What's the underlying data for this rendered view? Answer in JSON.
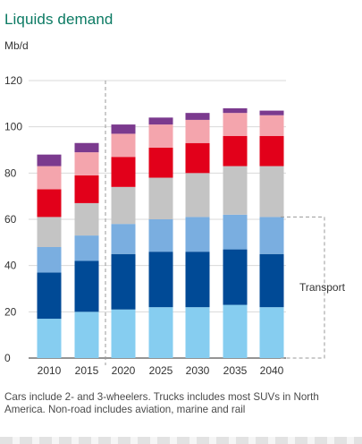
{
  "title": "Liquids demand",
  "unit": "Mb/d",
  "footnote": "Cars include 2- and 3-wheelers. Trucks includes most SUVs in North America. Non-road includes aviation, marine and rail",
  "chart_data": {
    "type": "bar",
    "stacked": true,
    "categories": [
      "2010",
      "2015",
      "2020",
      "2025",
      "2030",
      "2035",
      "2040"
    ],
    "ylim": [
      0,
      120
    ],
    "yticks": [
      0,
      20,
      40,
      60,
      80,
      100,
      120
    ],
    "grid": true,
    "series": [
      {
        "color": "#86cdf0",
        "values": [
          17,
          20,
          21,
          22,
          22,
          23,
          22
        ]
      },
      {
        "color": "#004a96",
        "values": [
          20,
          22,
          24,
          24,
          24,
          24,
          23
        ]
      },
      {
        "color": "#7aaee0",
        "values": [
          11,
          11,
          13,
          14,
          15,
          15,
          16
        ]
      },
      {
        "color": "#c4c4c4",
        "values": [
          13,
          14,
          16,
          18,
          19,
          21,
          22
        ]
      },
      {
        "color": "#e2001a",
        "values": [
          12,
          12,
          13,
          13,
          13,
          13,
          13
        ]
      },
      {
        "color": "#f4a5ad",
        "values": [
          10,
          10,
          10,
          10,
          10,
          10,
          9
        ]
      },
      {
        "color": "#7b3a8e",
        "values": [
          5,
          4,
          4,
          3,
          3,
          2,
          2
        ]
      }
    ],
    "annotation": {
      "text": "Transport",
      "value": 61
    }
  }
}
